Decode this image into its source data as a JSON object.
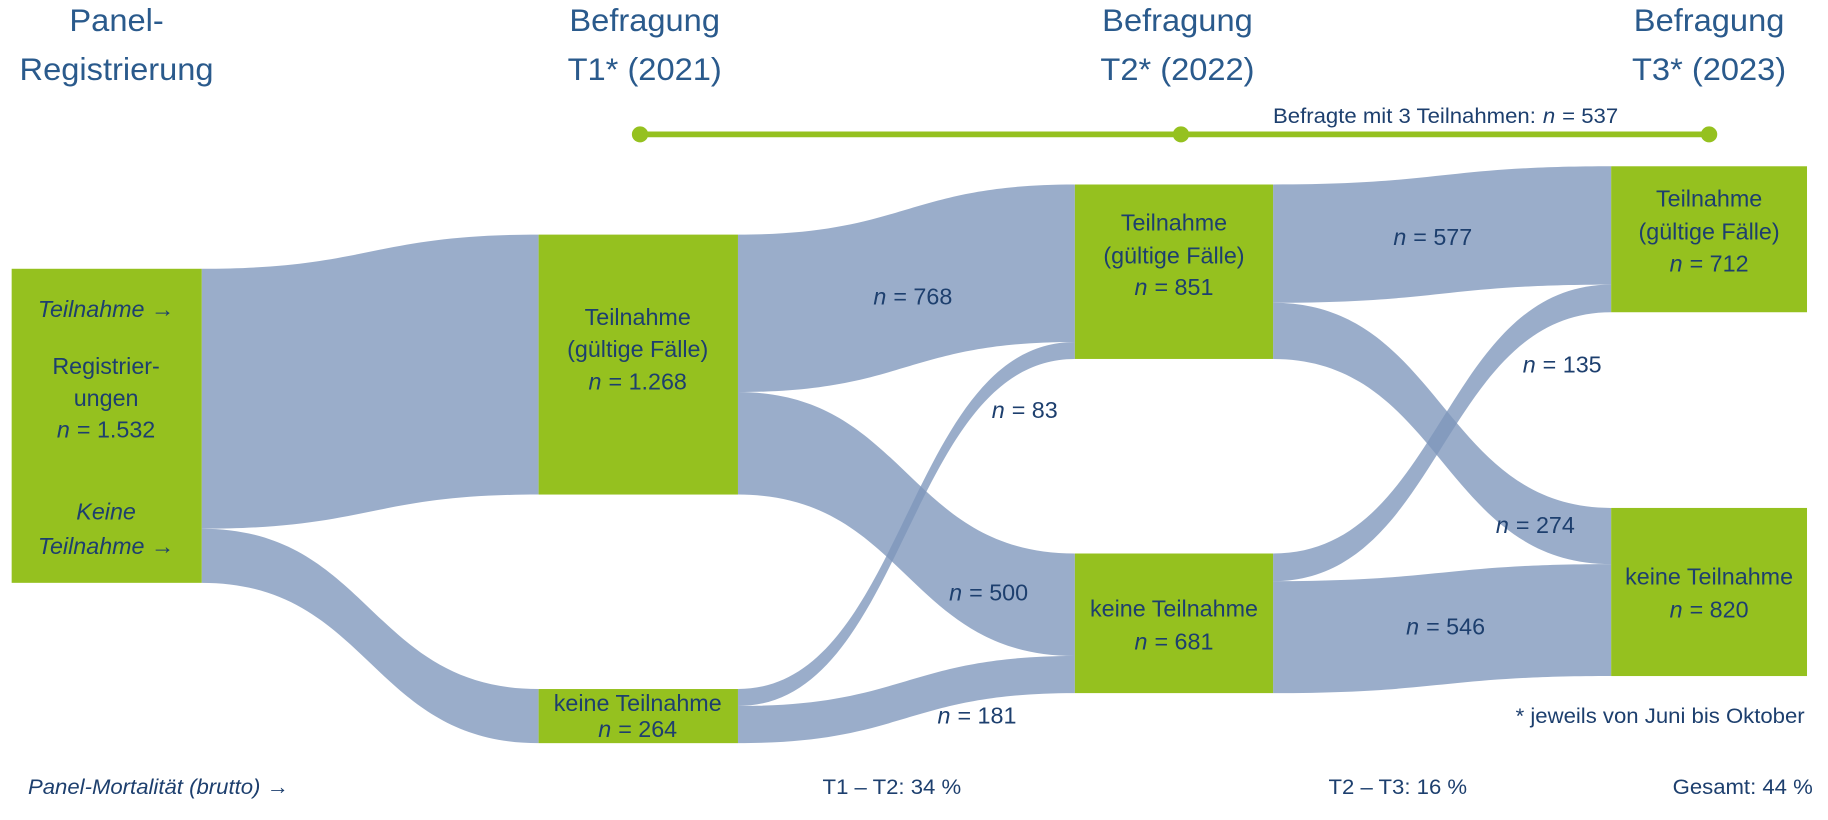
{
  "n_symbol": "n",
  "headers": [
    [
      "Panel-",
      "Registrierung"
    ],
    [
      "Befragung",
      "T1* (2021)"
    ],
    [
      "Befragung",
      "T2* (2022)"
    ],
    [
      "Befragung",
      "T3* (2023)"
    ]
  ],
  "bar_label": {
    "text": "Befragte mit 3 Teilnahmen:",
    "value": 537,
    "value_label": "= 537"
  },
  "nodes": [
    {
      "lines": [
        "Registrier-",
        "ungen"
      ],
      "value": 1532,
      "value_label": "= 1.532",
      "top_note": "Teilnahme →",
      "bottom_note": [
        "Keine",
        "Teilnahme →"
      ]
    },
    {
      "lines": [
        "Teilnahme",
        "(gültige Fälle)"
      ],
      "value": 1268,
      "value_label": "= 1.268"
    },
    {
      "lines": [
        "keine Teilnahme"
      ],
      "value": 264,
      "value_label": "= 264"
    },
    {
      "lines": [
        "Teilnahme",
        "(gültige Fälle)"
      ],
      "value": 851,
      "value_label": "= 851"
    },
    {
      "lines": [
        "keine Teilnahme"
      ],
      "value": 681,
      "value_label": "= 681"
    },
    {
      "lines": [
        "Teilnahme",
        "(gültige Fälle)"
      ],
      "value": 712,
      "value_label": "= 712"
    },
    {
      "lines": [
        "keine Teilnahme"
      ],
      "value": 820,
      "value_label": "= 820"
    }
  ],
  "flows": [
    {
      "source": 0,
      "target": 1,
      "value": 1268
    },
    {
      "source": 0,
      "target": 2,
      "value": 264
    },
    {
      "source": 1,
      "target": 3,
      "value": 768,
      "value_label": "= 768"
    },
    {
      "source": 1,
      "target": 4,
      "value": 500,
      "value_label": "= 500"
    },
    {
      "source": 2,
      "target": 3,
      "value": 83,
      "value_label": "= 83"
    },
    {
      "source": 2,
      "target": 4,
      "value": 181,
      "value_label": "= 181"
    },
    {
      "source": 3,
      "target": 5,
      "value": 577,
      "value_label": "= 577"
    },
    {
      "source": 3,
      "target": 6,
      "value": 274,
      "value_label": "= 274"
    },
    {
      "source": 4,
      "target": 5,
      "value": 135,
      "value_label": "= 135"
    },
    {
      "source": 4,
      "target": 6,
      "value": 546,
      "value_label": "= 546"
    }
  ],
  "footnote": "* jeweils von Juni bis Oktober",
  "mortality": {
    "label": "Panel-Mortalität (brutto) →",
    "items": [
      "T1 – T2: 34 %",
      "T2 – T3: 16 %",
      "Gesamt: 44 %"
    ]
  }
}
